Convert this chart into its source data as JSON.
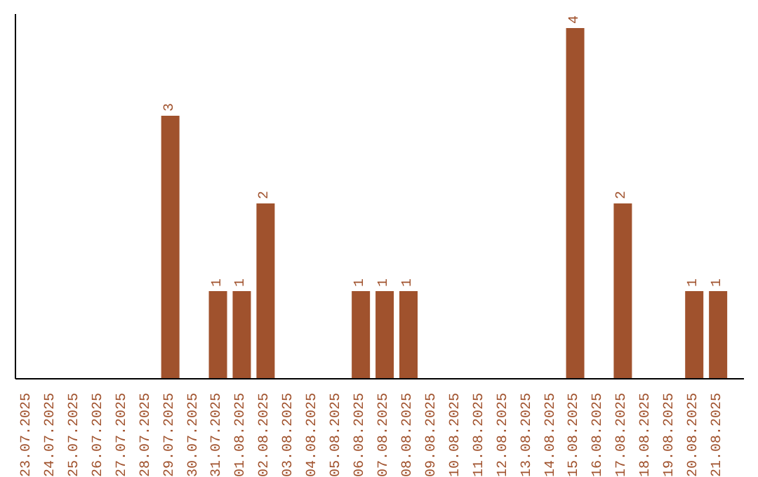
{
  "chart_data": {
    "type": "bar",
    "categories": [
      "23.07.2025",
      "24.07.2025",
      "25.07.2025",
      "26.07.2025",
      "27.07.2025",
      "28.07.2025",
      "29.07.2025",
      "30.07.2025",
      "31.07.2025",
      "01.08.2025",
      "02.08.2025",
      "03.08.2025",
      "04.08.2025",
      "05.08.2025",
      "06.08.2025",
      "07.08.2025",
      "08.08.2025",
      "09.08.2025",
      "10.08.2025",
      "11.08.2025",
      "12.08.2025",
      "13.08.2025",
      "14.08.2025",
      "15.08.2025",
      "16.08.2025",
      "17.08.2025",
      "18.08.2025",
      "19.08.2025",
      "20.08.2025",
      "21.08.2025"
    ],
    "values": [
      0,
      0,
      0,
      0,
      0,
      0,
      3,
      0,
      1,
      1,
      2,
      0,
      0,
      0,
      1,
      1,
      1,
      0,
      0,
      0,
      0,
      0,
      0,
      4,
      0,
      2,
      0,
      0,
      1,
      1
    ],
    "value_labels": [
      null,
      null,
      null,
      null,
      null,
      null,
      "3",
      null,
      "1",
      "1",
      "2",
      null,
      null,
      null,
      "1",
      "1",
      "1",
      null,
      null,
      null,
      null,
      null,
      null,
      "4",
      null,
      "2",
      null,
      null,
      "1",
      "1"
    ],
    "color": "#a0522d",
    "grid": false,
    "legend": false
  }
}
